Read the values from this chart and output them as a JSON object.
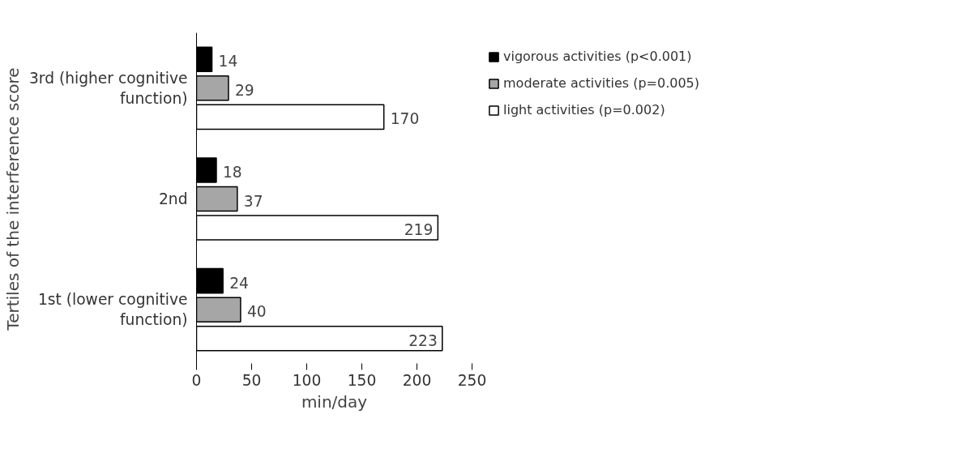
{
  "chart_data": {
    "type": "bar",
    "orientation": "horizontal",
    "ylabel": "Tertiles of the interference score",
    "xlabel": "min/day",
    "categories": [
      "3rd (higher cognitive function)",
      "2nd",
      "1st (lower cognitive function)"
    ],
    "series": [
      {
        "name": "vigorous activities (p<0.001)",
        "color": "#000000",
        "values": [
          14,
          18,
          24
        ]
      },
      {
        "name": "moderate activities (p=0.005)",
        "color": "#a6a6a6",
        "values": [
          29,
          37,
          40
        ]
      },
      {
        "name": "light activities (p=0.002)",
        "color": "#ffffff",
        "values": [
          170,
          219,
          223
        ]
      }
    ],
    "xlim": [
      0,
      250
    ],
    "xticks": [
      0,
      50,
      100,
      150,
      200,
      250
    ],
    "data_labels": true,
    "legend": "right",
    "grid": false
  }
}
